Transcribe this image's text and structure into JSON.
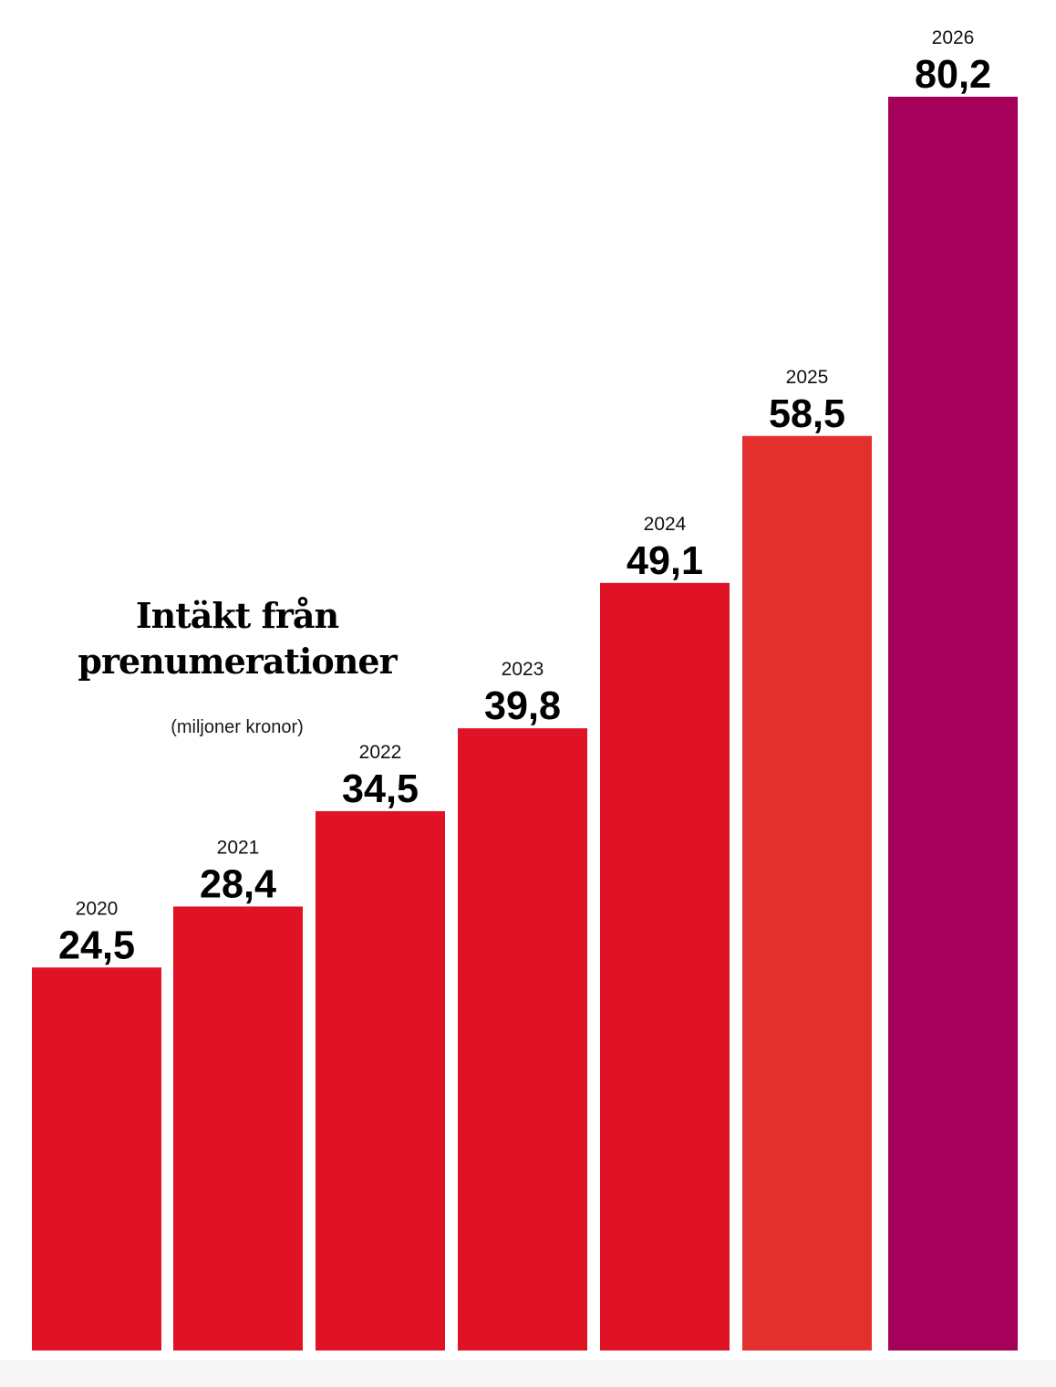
{
  "chart_data": {
    "type": "bar",
    "title": "Intäkt från prenumerationer",
    "subtitle": "(miljoner kronor)",
    "categories": [
      "2020",
      "2021",
      "2022",
      "2023",
      "2024",
      "2025",
      "2026"
    ],
    "values": [
      24.5,
      28.4,
      34.5,
      39.8,
      49.1,
      58.5,
      80.2
    ],
    "value_labels": [
      "24,5",
      "28,4",
      "34,5",
      "39,8",
      "49,1",
      "58,5",
      "80,2"
    ],
    "bar_colors": [
      "#df1226",
      "#df1226",
      "#df1226",
      "#df1226",
      "#df1226",
      "#e3302f",
      "#a5015a"
    ],
    "ylim": [
      0,
      80.2
    ],
    "grid": false,
    "xlabel": "",
    "ylabel": ""
  }
}
